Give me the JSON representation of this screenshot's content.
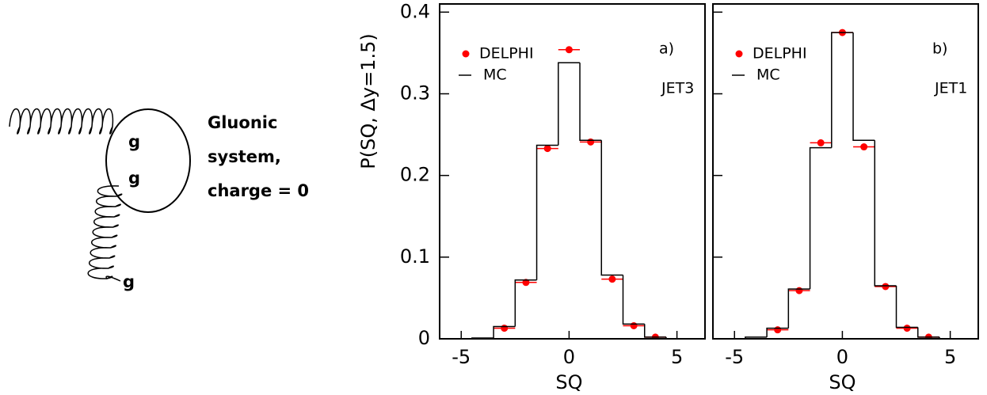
{
  "diagram": {
    "gluons": [
      "g",
      "g",
      "g"
    ],
    "system": [
      "Gluonic",
      "system,",
      "charge = 0"
    ]
  },
  "chart_data": [
    {
      "type": "histogram",
      "label": "a)",
      "annotation": "JET3",
      "xlabel": "SQ",
      "ylabel": "P(SQ, Δy=1.5)",
      "bins": [
        -6.5,
        -5.5,
        -4.5,
        -3.5,
        -2.5,
        -1.5,
        -0.5,
        0.5,
        1.5,
        2.5,
        3.5,
        4.5,
        5.5,
        6.5
      ],
      "series": [
        {
          "name": "DELPHI",
          "color": "#ff0000",
          "style": "points",
          "values": [
            null,
            null,
            null,
            0.013,
            0.069,
            0.233,
            0.354,
            0.241,
            0.073,
            0.016,
            0.002,
            null,
            null
          ]
        },
        {
          "name": "MC",
          "color": "#000000",
          "style": "step",
          "values": [
            0,
            0,
            0.001,
            0.015,
            0.072,
            0.237,
            0.338,
            0.243,
            0.078,
            0.018,
            0.002,
            0,
            0
          ]
        }
      ],
      "xlim": [
        -6,
        6.3
      ],
      "ylim": [
        0,
        0.41
      ],
      "xticks": [
        -5,
        0,
        5
      ],
      "yticks": [
        0,
        0.1,
        0.2,
        0.3,
        0.4
      ]
    },
    {
      "type": "histogram",
      "label": "b)",
      "annotation": "JET1",
      "xlabel": "SQ",
      "bins": [
        -6.5,
        -5.5,
        -4.5,
        -3.5,
        -2.5,
        -1.5,
        -0.5,
        0.5,
        1.5,
        2.5,
        3.5,
        4.5,
        5.5,
        6.5
      ],
      "series": [
        {
          "name": "DELPHI",
          "color": "#ff0000",
          "style": "points",
          "values": [
            null,
            null,
            null,
            0.011,
            0.059,
            0.24,
            0.375,
            0.235,
            0.064,
            0.013,
            0.002,
            null,
            null
          ]
        },
        {
          "name": "MC",
          "color": "#000000",
          "style": "step",
          "values": [
            0,
            0,
            0.002,
            0.013,
            0.061,
            0.234,
            0.375,
            0.243,
            0.065,
            0.014,
            0.002,
            0,
            0
          ]
        }
      ],
      "xlim": [
        -6,
        6.3
      ],
      "ylim": [
        0,
        0.41
      ],
      "xticks": [
        -5,
        0,
        5
      ]
    }
  ]
}
